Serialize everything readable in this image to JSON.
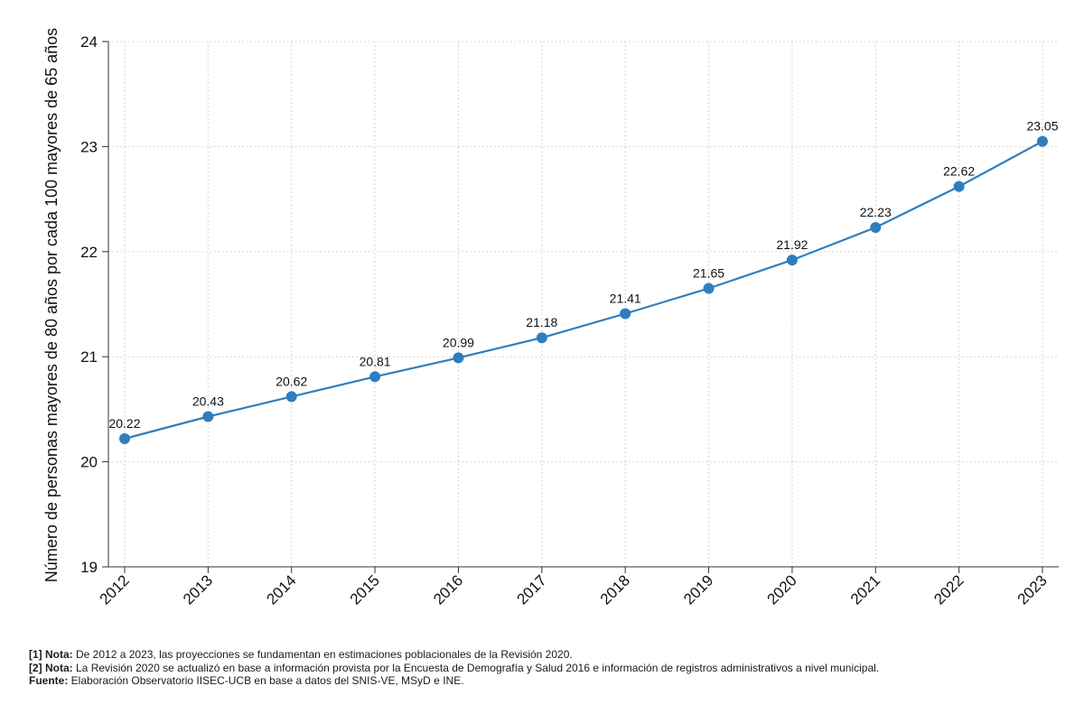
{
  "chart_data": {
    "type": "line",
    "title": "",
    "xlabel": "",
    "ylabel": "Número de personas mayores de 80 años por cada 100 mayores de 65 años",
    "x": [
      "2012",
      "2013",
      "2014",
      "2015",
      "2016",
      "2017",
      "2018",
      "2019",
      "2020",
      "2021",
      "2022",
      "2023"
    ],
    "y": [
      20.22,
      20.43,
      20.62,
      20.81,
      20.99,
      21.18,
      21.41,
      21.65,
      21.92,
      22.23,
      22.62,
      23.05
    ],
    "data_labels": [
      "20.22",
      "20.43",
      "20.62",
      "20.81",
      "20.99",
      "21.18",
      "21.41",
      "21.65",
      "21.92",
      "22.23",
      "22.62",
      "23.05"
    ],
    "ylim": [
      19,
      24
    ],
    "yticks": [
      "19",
      "20",
      "21",
      "22",
      "23",
      "24"
    ],
    "grid": true,
    "legend": "none",
    "color": "#2e7ebf"
  },
  "notes": [
    {
      "label": "[1] Nota:",
      "text": " De 2012 a 2023, las proyecciones se fundamentan en estimaciones poblacionales de la Revisión 2020."
    },
    {
      "label": "[2] Nota:",
      "text": " La Revisión 2020 se actualizó en base a información provista por la Encuesta de Demografía y Salud 2016 e información de registros administrativos a nivel municipal."
    },
    {
      "label": "Fuente:",
      "text": " Elaboración Observatorio IISEC-UCB en base a datos del SNIS-VE, MSyD e INE."
    }
  ]
}
